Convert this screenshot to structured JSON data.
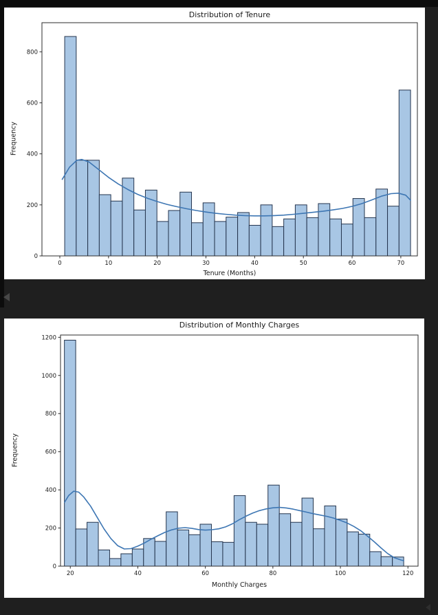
{
  "theme": {
    "page_bg": "#1f1f1f",
    "edge_strip": "#0c0c0c",
    "card_bg": "#ffffff",
    "bar_fill": "#a8c6e4",
    "bar_edge": "#24344d",
    "kde_color": "#3d76b3",
    "axis_color": "#2b2b2b",
    "text_color": "#1a1a1a"
  },
  "chart_data": [
    {
      "type": "bar",
      "subtype": "histogram_with_kde",
      "title": "Distribution of Tenure",
      "xlabel": "Tenure (Months)",
      "ylabel": "Frequency",
      "bin_start": 1,
      "bin_width": 2.3667,
      "values": [
        860,
        375,
        375,
        240,
        215,
        305,
        180,
        258,
        135,
        178,
        250,
        130,
        208,
        135,
        152,
        170,
        120,
        200,
        115,
        145,
        200,
        150,
        205,
        145,
        125,
        225,
        150,
        262,
        195,
        650
      ],
      "kde_points": [
        [
          0.5,
          300
        ],
        [
          2,
          348
        ],
        [
          3.5,
          375
        ],
        [
          4.5,
          378
        ],
        [
          6,
          368
        ],
        [
          8,
          338
        ],
        [
          10,
          308
        ],
        [
          12,
          282
        ],
        [
          14,
          260
        ],
        [
          16,
          241
        ],
        [
          18,
          226
        ],
        [
          20,
          213
        ],
        [
          22,
          202
        ],
        [
          24,
          193
        ],
        [
          26,
          185
        ],
        [
          28,
          178
        ],
        [
          30,
          172
        ],
        [
          32,
          167
        ],
        [
          34,
          163
        ],
        [
          36,
          160
        ],
        [
          38,
          158
        ],
        [
          40,
          157
        ],
        [
          42,
          157
        ],
        [
          44,
          158
        ],
        [
          46,
          160
        ],
        [
          48,
          163
        ],
        [
          50,
          167
        ],
        [
          52,
          171
        ],
        [
          54,
          175
        ],
        [
          56,
          180
        ],
        [
          58,
          186
        ],
        [
          60,
          194
        ],
        [
          62,
          205
        ],
        [
          64,
          219
        ],
        [
          66,
          234
        ],
        [
          68,
          244
        ],
        [
          69.5,
          246
        ],
        [
          71,
          238
        ],
        [
          72,
          218
        ]
      ],
      "xticks": [
        0,
        10,
        20,
        30,
        40,
        50,
        60,
        70
      ],
      "yticks": [
        0,
        200,
        400,
        600,
        800
      ],
      "xlim": [
        -3.67,
        73.4
      ],
      "ylim": [
        0,
        914
      ],
      "grid": false,
      "legend": "none"
    },
    {
      "type": "bar",
      "subtype": "histogram_with_kde",
      "title": "Distribution of Monthly Charges",
      "xlabel": "Monthly Charges",
      "ylabel": "Frequency",
      "bin_start": 18.25,
      "bin_width": 3.35,
      "values": [
        1185,
        195,
        230,
        85,
        40,
        65,
        90,
        145,
        130,
        285,
        190,
        165,
        220,
        128,
        125,
        370,
        230,
        220,
        425,
        275,
        230,
        357,
        196,
        316,
        247,
        180,
        168,
        76,
        50,
        48
      ],
      "kde_points": [
        [
          18.3,
          335
        ],
        [
          19.5,
          370
        ],
        [
          21,
          393
        ],
        [
          22.5,
          388
        ],
        [
          24,
          362
        ],
        [
          26,
          315
        ],
        [
          28,
          255
        ],
        [
          30,
          195
        ],
        [
          32,
          145
        ],
        [
          34,
          108
        ],
        [
          36,
          90
        ],
        [
          38,
          92
        ],
        [
          40,
          105
        ],
        [
          42,
          122
        ],
        [
          44,
          142
        ],
        [
          46,
          160
        ],
        [
          48,
          177
        ],
        [
          50,
          190
        ],
        [
          52,
          199
        ],
        [
          54,
          202
        ],
        [
          56,
          198
        ],
        [
          58,
          192
        ],
        [
          60,
          189
        ],
        [
          62,
          191
        ],
        [
          64,
          196
        ],
        [
          66,
          206
        ],
        [
          68,
          222
        ],
        [
          70,
          243
        ],
        [
          72,
          262
        ],
        [
          74,
          278
        ],
        [
          76,
          291
        ],
        [
          78,
          300
        ],
        [
          80,
          306
        ],
        [
          82,
          308
        ],
        [
          84,
          305
        ],
        [
          86,
          299
        ],
        [
          88,
          291
        ],
        [
          90,
          283
        ],
        [
          92,
          275
        ],
        [
          94,
          268
        ],
        [
          96,
          261
        ],
        [
          98,
          252
        ],
        [
          100,
          240
        ],
        [
          102,
          226
        ],
        [
          104,
          208
        ],
        [
          106,
          186
        ],
        [
          108,
          158
        ],
        [
          110,
          128
        ],
        [
          112,
          96
        ],
        [
          114,
          66
        ],
        [
          116,
          44
        ],
        [
          118,
          32
        ],
        [
          118.75,
          29
        ]
      ],
      "xticks": [
        20,
        40,
        60,
        80,
        100,
        120
      ],
      "yticks": [
        0,
        200,
        400,
        600,
        800,
        1000,
        1200
      ],
      "xlim": [
        17.1,
        123.0
      ],
      "ylim": [
        0,
        1212
      ],
      "grid": false,
      "legend": "none"
    }
  ]
}
